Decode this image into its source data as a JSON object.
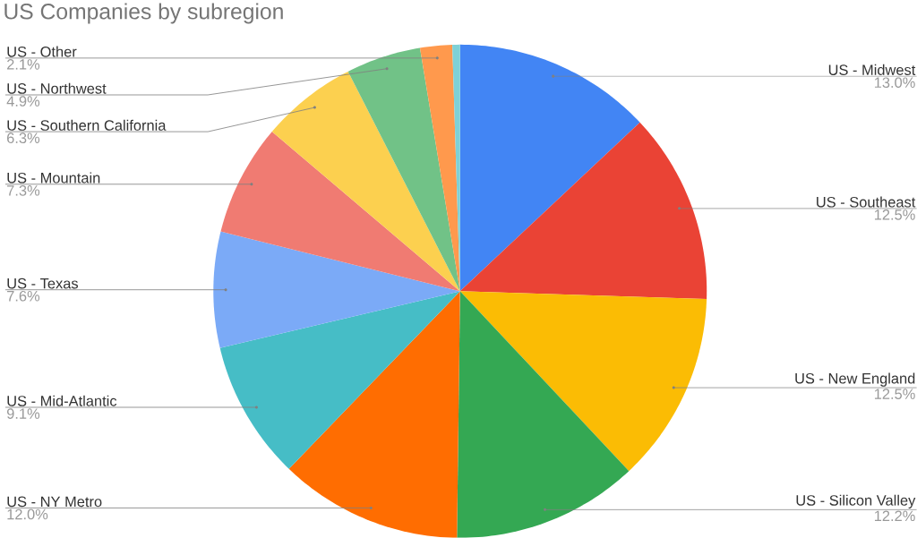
{
  "chart_data": {
    "type": "pie",
    "title": "US Companies by subregion",
    "categories": [
      "US - Midwest",
      "US - Southeast",
      "US - New England",
      "US - Silicon Valley",
      "US - NY Metro",
      "US - Mid-Atlantic",
      "US - Texas",
      "US - Mountain",
      "US - Southern California",
      "US - Northwest",
      "US - Other",
      null
    ],
    "values": [
      13.0,
      12.5,
      12.5,
      12.2,
      12.0,
      9.1,
      7.6,
      7.3,
      6.3,
      4.9,
      2.1,
      0.5
    ],
    "value_labels": [
      "13.0%",
      "12.5%",
      "12.5%",
      "12.2%",
      "12.0%",
      "9.1%",
      "7.6%",
      "7.3%",
      "6.3%",
      "4.9%",
      "2.1%",
      null
    ],
    "colors": [
      "#4285f4",
      "#ea4335",
      "#fbbc04",
      "#34a853",
      "#ff6d01",
      "#46bdc6",
      "#7baaf7",
      "#f07b72",
      "#fcd04f",
      "#71c287",
      "#ff994d",
      "#7ed1d7"
    ]
  }
}
